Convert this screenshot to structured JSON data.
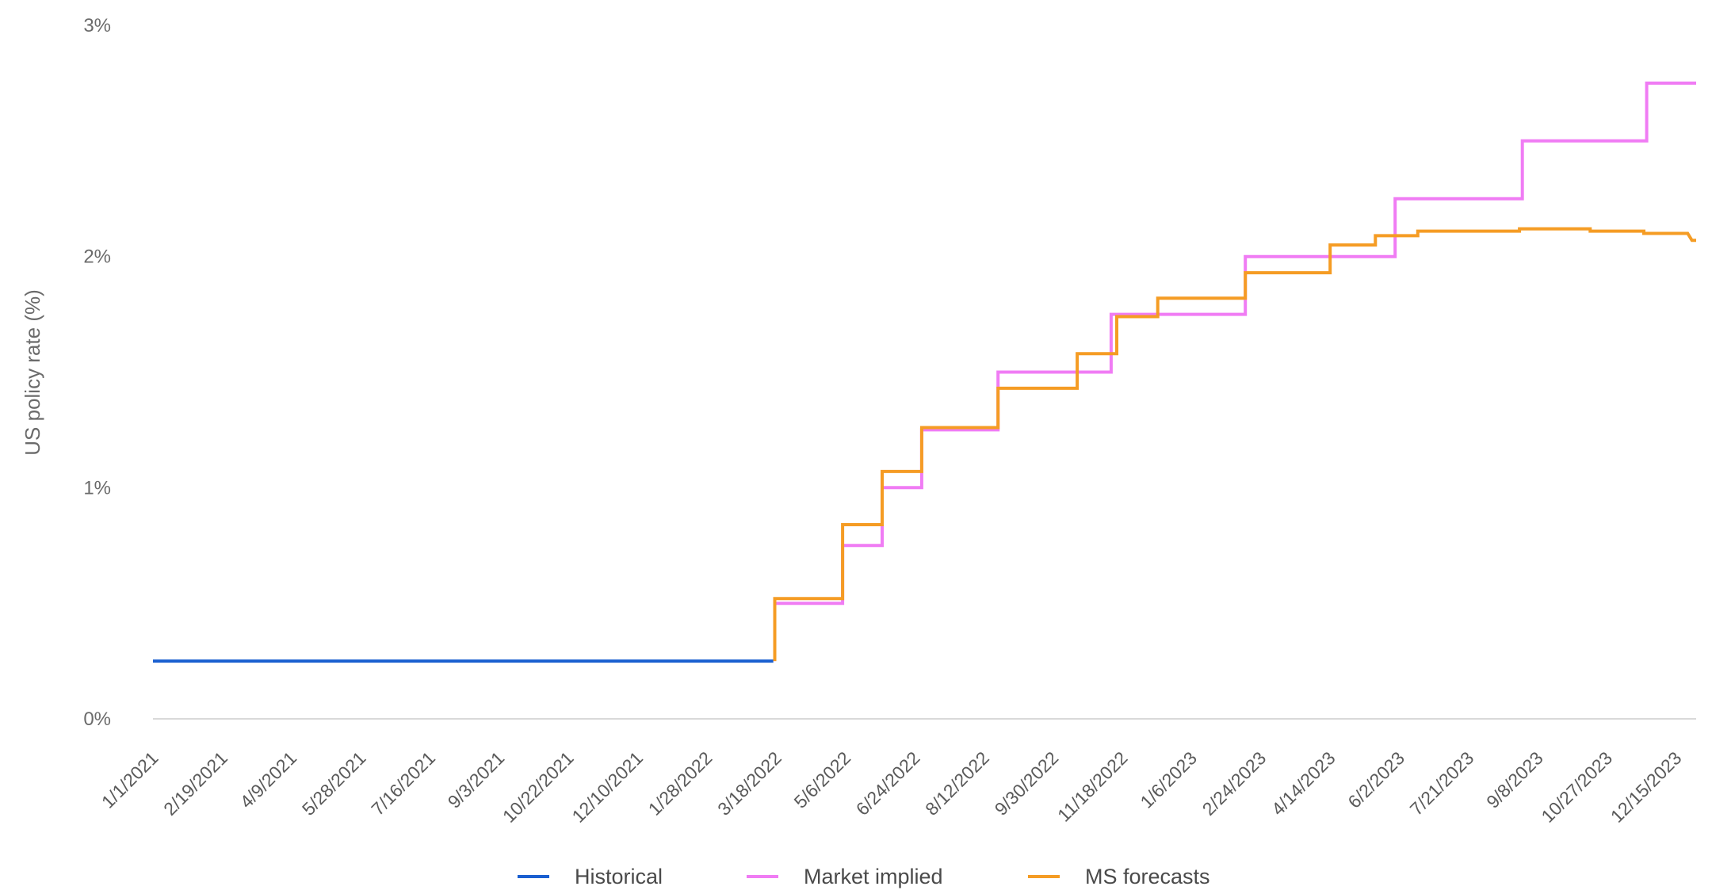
{
  "chart_data": {
    "type": "line",
    "step": true,
    "title": "",
    "xlabel": "",
    "ylabel": "US policy rate (%)",
    "ylim": [
      0,
      3
    ],
    "yticks": [
      {
        "value": 0,
        "label": "0%"
      },
      {
        "value": 1,
        "label": "1%"
      },
      {
        "value": 2,
        "label": "2%"
      },
      {
        "value": 3,
        "label": "3%"
      }
    ],
    "xlim": [
      "2021-01-01",
      "2023-12-29"
    ],
    "xtick_labels": [
      "1/1/2021",
      "2/19/2021",
      "4/9/2021",
      "5/28/2021",
      "7/16/2021",
      "9/3/2021",
      "10/22/2021",
      "12/10/2021",
      "1/28/2022",
      "3/18/2022",
      "5/6/2022",
      "6/24/2022",
      "8/12/2022",
      "9/30/2022",
      "11/18/2022",
      "1/6/2023",
      "2/24/2023",
      "4/14/2023",
      "6/2/2023",
      "7/21/2023",
      "9/8/2023",
      "10/27/2023",
      "12/15/2023"
    ],
    "grid": false,
    "legend_position": "bottom",
    "series": [
      {
        "name": "Historical",
        "color": "#1a5fd0",
        "points": [
          [
            "2021-01-01",
            0.25
          ],
          [
            "2022-03-16",
            0.25
          ]
        ]
      },
      {
        "name": "Market implied",
        "color": "#f07cf4",
        "points": [
          [
            "2022-03-17",
            0.25
          ],
          [
            "2022-03-17",
            0.5
          ],
          [
            "2022-05-04",
            0.5
          ],
          [
            "2022-05-04",
            0.75
          ],
          [
            "2022-06-01",
            0.75
          ],
          [
            "2022-06-01",
            1.0
          ],
          [
            "2022-06-29",
            1.0
          ],
          [
            "2022-06-29",
            1.25
          ],
          [
            "2022-08-22",
            1.25
          ],
          [
            "2022-08-22",
            1.5
          ],
          [
            "2022-11-10",
            1.5
          ],
          [
            "2022-11-10",
            1.75
          ],
          [
            "2023-02-13",
            1.75
          ],
          [
            "2023-02-13",
            2.0
          ],
          [
            "2023-05-30",
            2.0
          ],
          [
            "2023-05-30",
            2.25
          ],
          [
            "2023-08-28",
            2.25
          ],
          [
            "2023-08-28",
            2.5
          ],
          [
            "2023-11-24",
            2.5
          ],
          [
            "2023-11-24",
            2.75
          ],
          [
            "2023-12-29",
            2.75
          ]
        ]
      },
      {
        "name": "MS forecasts",
        "color": "#f59c24",
        "points": [
          [
            "2022-03-17",
            0.25
          ],
          [
            "2022-03-17",
            0.52
          ],
          [
            "2022-05-04",
            0.52
          ],
          [
            "2022-05-04",
            0.84
          ],
          [
            "2022-06-01",
            0.84
          ],
          [
            "2022-06-01",
            1.07
          ],
          [
            "2022-06-29",
            1.07
          ],
          [
            "2022-06-29",
            1.26
          ],
          [
            "2022-08-22",
            1.26
          ],
          [
            "2022-08-22",
            1.43
          ],
          [
            "2022-10-17",
            1.43
          ],
          [
            "2022-10-17",
            1.58
          ],
          [
            "2022-11-14",
            1.58
          ],
          [
            "2022-11-14",
            1.74
          ],
          [
            "2022-12-13",
            1.74
          ],
          [
            "2022-12-13",
            1.82
          ],
          [
            "2023-02-13",
            1.82
          ],
          [
            "2023-02-13",
            1.93
          ],
          [
            "2023-04-14",
            1.93
          ],
          [
            "2023-04-14",
            2.05
          ],
          [
            "2023-05-16",
            2.05
          ],
          [
            "2023-05-16",
            2.09
          ],
          [
            "2023-06-15",
            2.09
          ],
          [
            "2023-06-15",
            2.11
          ],
          [
            "2023-08-26",
            2.11
          ],
          [
            "2023-08-26",
            2.12
          ],
          [
            "2023-10-15",
            2.12
          ],
          [
            "2023-10-15",
            2.11
          ],
          [
            "2023-11-22",
            2.11
          ],
          [
            "2023-11-22",
            2.1
          ],
          [
            "2023-12-23",
            2.1
          ],
          [
            "2023-12-26",
            2.07
          ],
          [
            "2023-12-29",
            2.07
          ]
        ]
      }
    ]
  }
}
